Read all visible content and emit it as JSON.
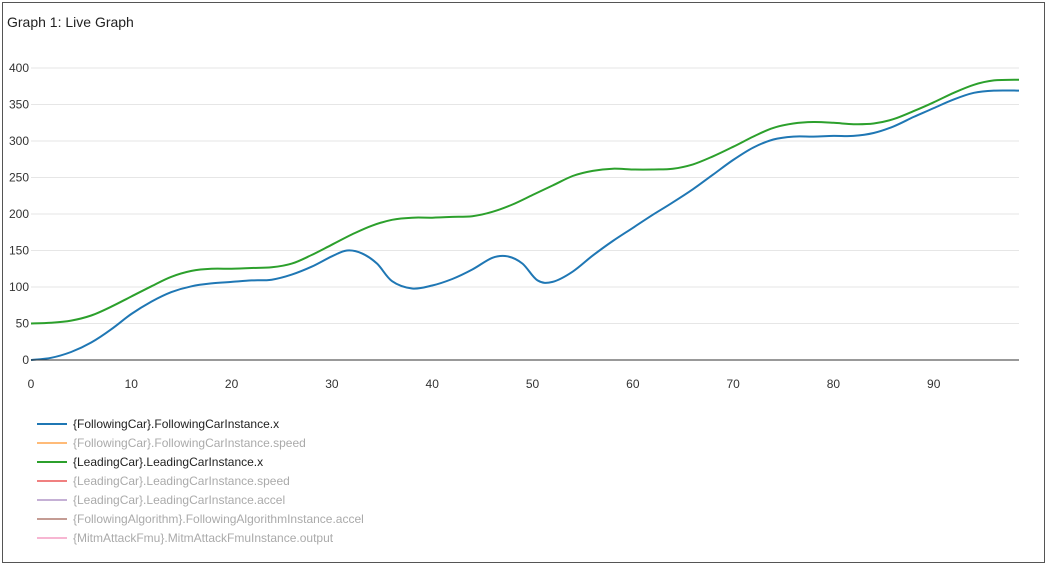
{
  "panel": {
    "title": "Graph 1: Live Graph"
  },
  "colors": {
    "axis": "#333333",
    "grid": "#e6e6e6",
    "tick_text": "#333333"
  },
  "chart_data": {
    "type": "line",
    "title": "Graph 1: Live Graph",
    "xlabel": "",
    "ylabel": "",
    "xlim": [
      0,
      98.5
    ],
    "ylim": [
      0,
      400
    ],
    "xticks": [
      0,
      10,
      20,
      30,
      40,
      50,
      60,
      70,
      80,
      90
    ],
    "yticks": [
      0,
      50,
      100,
      150,
      200,
      250,
      300,
      350,
      400
    ],
    "grid": true,
    "legend_position": "bottom-left",
    "series": [
      {
        "name": "{FollowingCar}.FollowingCarInstance.x",
        "color": "#1f77b4",
        "visible": true,
        "x": [
          0,
          2,
          4,
          6,
          8,
          10,
          12,
          14,
          16,
          18,
          20,
          22,
          24,
          26,
          28,
          30,
          31.5,
          33,
          34.5,
          36,
          38,
          40,
          42,
          44,
          46,
          47.5,
          49,
          50.5,
          52,
          54,
          56,
          58,
          60,
          62,
          64,
          66,
          68,
          70,
          72,
          74,
          76,
          78,
          80,
          82,
          84,
          86,
          88,
          90,
          92,
          94,
          96,
          98.5
        ],
        "y": [
          0,
          3,
          11,
          24,
          42,
          63,
          80,
          93,
          101,
          105,
          107,
          109,
          110,
          117,
          128,
          142,
          150,
          146,
          132,
          108,
          98,
          102,
          111,
          124,
          140,
          142,
          132,
          109,
          107,
          121,
          143,
          163,
          181,
          199,
          216,
          234,
          254,
          274,
          291,
          302,
          306,
          306,
          307,
          307,
          311,
          320,
          333,
          345,
          357,
          366,
          369,
          369
        ]
      },
      {
        "name": "{FollowingCar}.FollowingCarInstance.speed",
        "color": "#ffbb78",
        "visible": false,
        "x": [],
        "y": []
      },
      {
        "name": "{LeadingCar}.LeadingCarInstance.x",
        "color": "#2ca02c",
        "visible": true,
        "x": [
          0,
          2,
          4,
          6,
          8,
          10,
          12,
          14,
          16,
          18,
          20,
          22,
          24,
          26,
          28,
          30,
          32,
          34,
          36,
          38,
          40,
          42,
          44,
          46,
          48,
          50,
          52,
          54,
          56,
          58,
          60,
          62,
          64,
          66,
          68,
          70,
          72,
          74,
          76,
          78,
          80,
          82,
          84,
          86,
          88,
          90,
          92,
          94,
          96,
          98.5
        ],
        "y": [
          50,
          51,
          54,
          61,
          73,
          87,
          101,
          114,
          122,
          125,
          125,
          126,
          127,
          132,
          144,
          158,
          172,
          184,
          192,
          195,
          195,
          196,
          197,
          203,
          213,
          226,
          239,
          252,
          259,
          262,
          261,
          261,
          262,
          268,
          279,
          292,
          306,
          318,
          324,
          326,
          325,
          323,
          324,
          330,
          341,
          353,
          366,
          377,
          383,
          384
        ]
      },
      {
        "name": "{LeadingCar}.LeadingCarInstance.speed",
        "color": "#f08080",
        "visible": false,
        "x": [],
        "y": []
      },
      {
        "name": "{LeadingCar}.LeadingCarInstance.accel",
        "color": "#c5b0d5",
        "visible": false,
        "x": [],
        "y": []
      },
      {
        "name": "{FollowingAlgorithm}.FollowingAlgorithmInstance.accel",
        "color": "#c49c94",
        "visible": false,
        "x": [],
        "y": []
      },
      {
        "name": "{MitmAttackFmu}.MitmAttackFmuInstance.output",
        "color": "#f7b6d2",
        "visible": false,
        "x": [],
        "y": []
      }
    ]
  }
}
